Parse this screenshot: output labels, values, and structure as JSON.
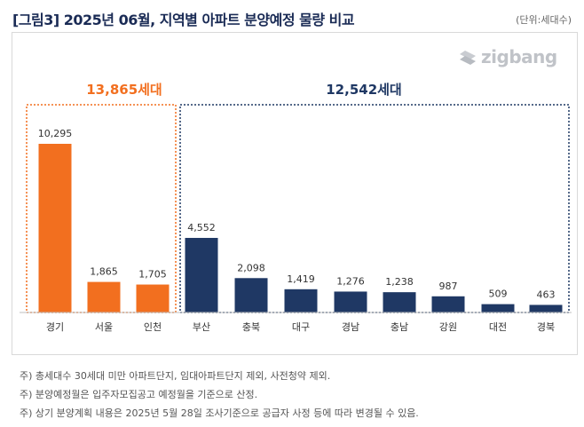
{
  "title": "[그림3] 2025년 06월, 지역별 아파트 분양예정 물량 비교",
  "unit": "(단위:세대수)",
  "logo": "zigbang",
  "colors": {
    "metro": "#f26f1f",
    "other": "#1f3864",
    "title": "#1a2b55"
  },
  "chart_data": {
    "type": "bar",
    "categories": [
      "경기",
      "서울",
      "인천",
      "부산",
      "충북",
      "대구",
      "경남",
      "충남",
      "강원",
      "대전",
      "경북"
    ],
    "values": [
      10295,
      1865,
      1705,
      4552,
      2098,
      1419,
      1276,
      1238,
      987,
      509,
      463
    ],
    "value_labels": [
      "10,295",
      "1,865",
      "1,705",
      "4,552",
      "2,098",
      "1,419",
      "1,276",
      "1,238",
      "987",
      "509",
      "463"
    ],
    "groups": [
      {
        "total_label": "13,865세대",
        "categories": [
          "경기",
          "서울",
          "인천"
        ],
        "color": "#f26f1f"
      },
      {
        "total_label": "12,542세대",
        "categories": [
          "부산",
          "충북",
          "대구",
          "경남",
          "충남",
          "강원",
          "대전",
          "경북"
        ],
        "color": "#1f3864"
      }
    ],
    "ylim": [
      0,
      10295
    ]
  },
  "notes": [
    "주) 총세대수 30세대 미만 아파트단지, 임대아파트단지 제외, 사전청약 제외.",
    "주) 분양예정월은 입주자모집공고 예정월을 기준으로 산정.",
    "주) 상기 분양계획 내용은 2025년 5월 28일 조사기준으로 공급자 사정 등에 따라 변경될 수 있음."
  ]
}
